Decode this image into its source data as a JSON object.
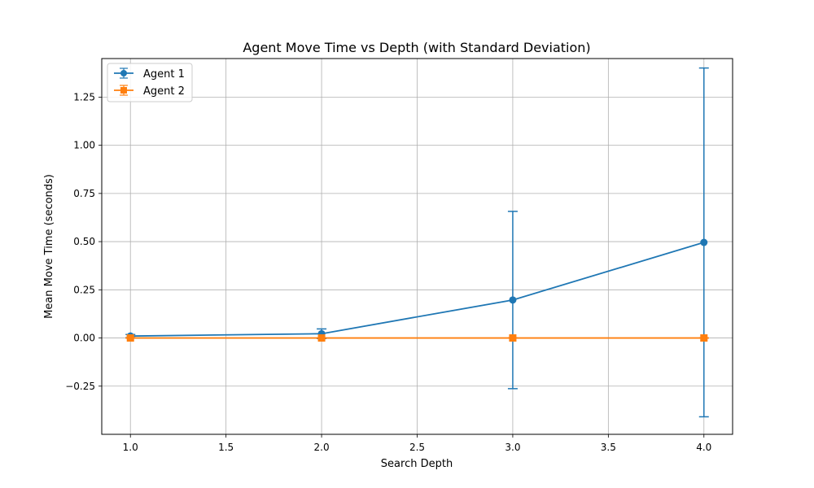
{
  "chart_data": {
    "type": "line",
    "title": "Agent Move Time vs Depth (with Standard Deviation)",
    "xlabel": "Search Depth",
    "ylabel": "Mean Move Time (seconds)",
    "x": [
      1.0,
      2.0,
      3.0,
      4.0
    ],
    "xlim": [
      0.85,
      4.15
    ],
    "ylim": [
      -0.5,
      1.45
    ],
    "xticks": [
      "1.0",
      "1.5",
      "2.0",
      "2.5",
      "3.0",
      "3.5",
      "4.0"
    ],
    "yticks": [
      "−0.25",
      "0.00",
      "0.25",
      "0.50",
      "0.75",
      "1.00",
      "1.25"
    ],
    "grid": true,
    "legend_position": "top-left",
    "series": [
      {
        "name": "Agent 1",
        "color": "#1f77b4",
        "marker": "circle",
        "values": [
          0.01,
          0.022,
          0.197,
          0.496
        ],
        "error": [
          0.008,
          0.025,
          0.46,
          0.905
        ]
      },
      {
        "name": "Agent 2",
        "color": "#ff7f0e",
        "marker": "square",
        "values": [
          0.0,
          0.0,
          0.0,
          0.0
        ],
        "error": [
          0.001,
          0.001,
          0.001,
          0.001
        ]
      }
    ]
  }
}
